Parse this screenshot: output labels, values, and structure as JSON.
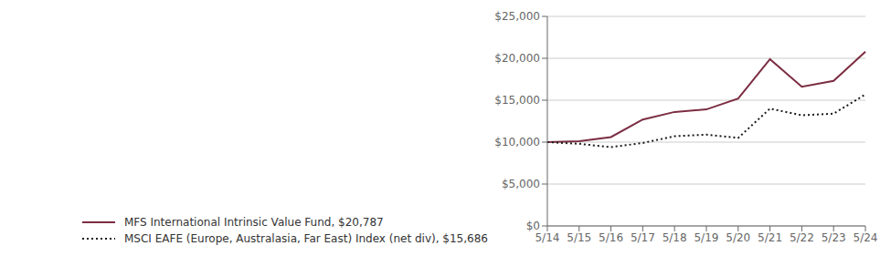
{
  "chart_data": {
    "type": "line",
    "categories": [
      "5/14",
      "5/15",
      "5/16",
      "5/17",
      "5/18",
      "5/19",
      "5/20",
      "5/21",
      "5/22",
      "5/23",
      "5/24"
    ],
    "series": [
      {
        "name": "MFS International Intrinsic Value Fund, $20,787",
        "color": "#7B2D42",
        "line_style": "solid",
        "values": [
          10000,
          10100,
          10600,
          12700,
          13600,
          13900,
          15200,
          19900,
          16600,
          17300,
          20787
        ]
      },
      {
        "name": "MSCI EAFE (Europe, Australasia, Far East) Index (net div), $15,686",
        "color": "#1a1a1a",
        "line_style": "dotted",
        "values": [
          10000,
          9800,
          9400,
          9900,
          10700,
          10900,
          10500,
          14000,
          13200,
          13400,
          15686
        ]
      }
    ],
    "ylim": [
      0,
      25000
    ],
    "yticks": [
      {
        "value": 0,
        "label": "$0"
      },
      {
        "value": 5000,
        "label": "$5,000"
      },
      {
        "value": 10000,
        "label": "$10,000"
      },
      {
        "value": 15000,
        "label": "$15,000"
      },
      {
        "value": 20000,
        "label": "$20,000"
      },
      {
        "value": 25000,
        "label": "$25,000"
      }
    ],
    "grid": true,
    "legend": "bottom left"
  }
}
